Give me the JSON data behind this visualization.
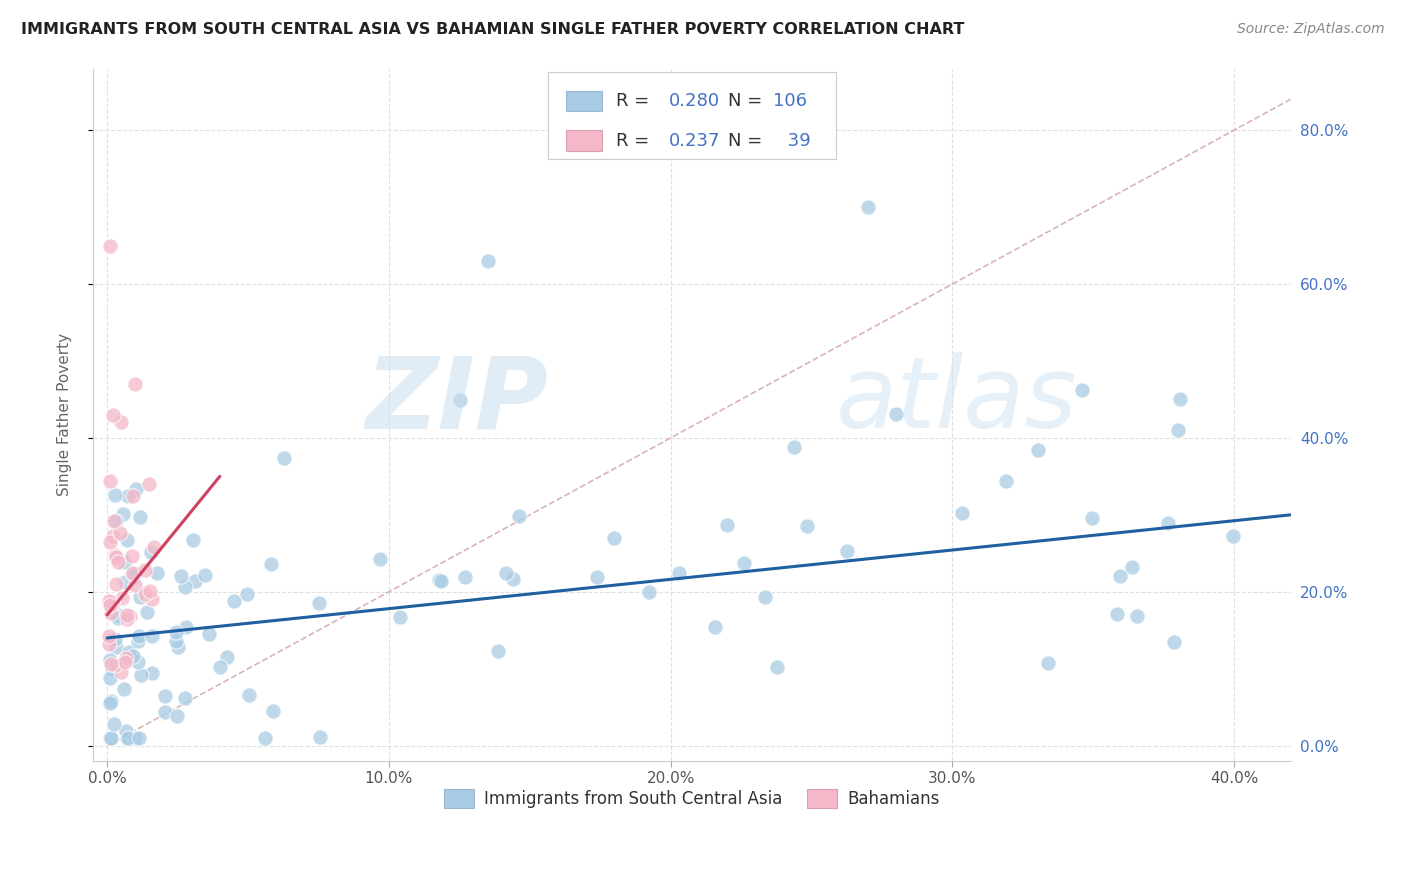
{
  "title": "IMMIGRANTS FROM SOUTH CENTRAL ASIA VS BAHAMIAN SINGLE FATHER POVERTY CORRELATION CHART",
  "source": "Source: ZipAtlas.com",
  "ylabel": "Single Father Poverty",
  "legend_label1": "Immigrants from South Central Asia",
  "legend_label2": "Bahamians",
  "R1": "0.280",
  "N1": "106",
  "R2": "0.237",
  "N2": " 39",
  "color_blue": "#a8cce4",
  "color_pink": "#f4b8c8",
  "color_blue_text": "#4472c4",
  "color_trend_blue": "#2060a0",
  "color_trend_pink": "#d04060",
  "color_diag": "#d0a0a8",
  "color_grid": "#dddddd",
  "color_right_axis": "#4472c4",
  "xlim": [
    0.0,
    0.42
  ],
  "ylim": [
    0.0,
    0.88
  ],
  "x_tick_vals": [
    0.0,
    0.1,
    0.2,
    0.3,
    0.4
  ],
  "x_tick_labels": [
    "0.0%",
    "10.0%",
    "20.0%",
    "30.0%",
    "40.0%"
  ],
  "y_tick_vals": [
    0.0,
    0.2,
    0.4,
    0.6,
    0.8
  ],
  "y_tick_labels": [
    "0.0%",
    "20.0%",
    "40.0%",
    "60.0%",
    "80.0%"
  ],
  "blue_trend": [
    0.0,
    0.42,
    0.14,
    0.3
  ],
  "pink_trend": [
    0.0,
    0.04,
    0.17,
    0.35
  ]
}
